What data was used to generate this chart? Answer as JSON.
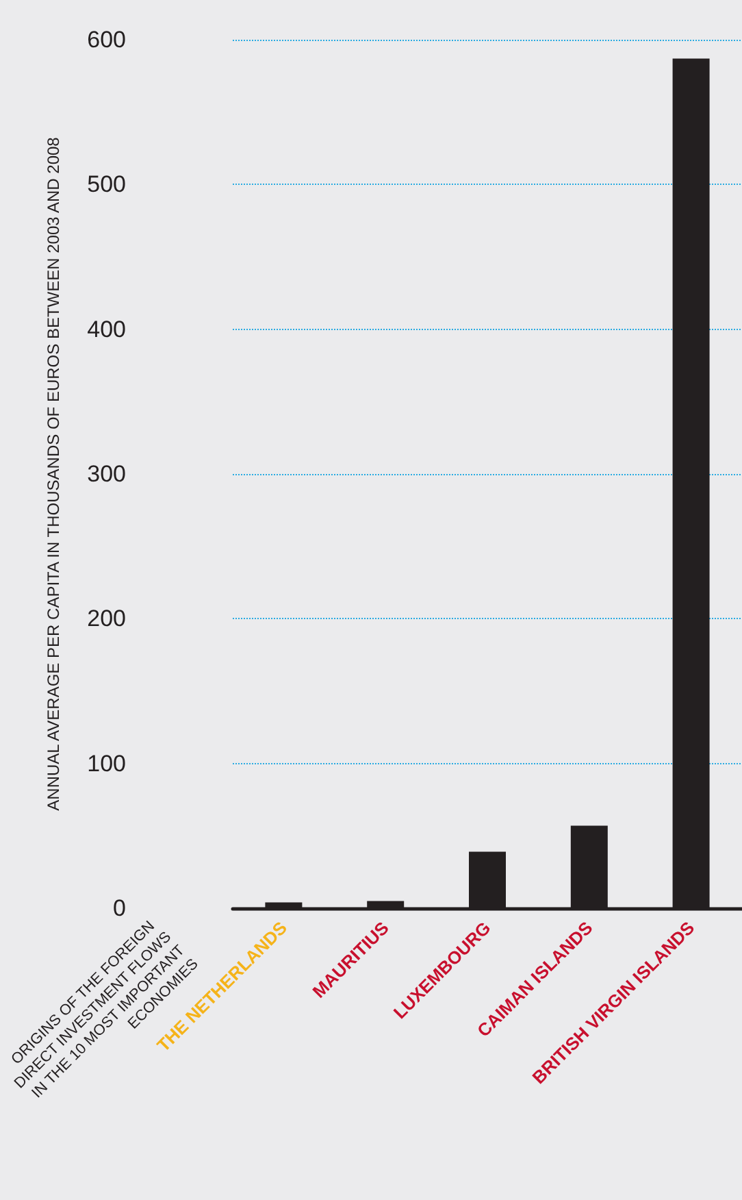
{
  "chart_data": {
    "type": "bar",
    "xlabel": "ORIGINS OF THE FOREIGN DIRECT INVESTMENT FLOWS IN THE 10 MOST IMPORTANT ECONOMIES",
    "ylabel": "ANNUAL AVERAGE PER CAPITA IN THOUSANDS OF EUROS BETWEEN 2003 AND 2008",
    "categories": [
      "THE NETHERLANDS",
      "MAURITIUS",
      "LUXEMBOURG",
      "CAIMAN ISLANDS",
      "BRITISH VIRGIN ISLANDS"
    ],
    "values": [
      4,
      5,
      39,
      57,
      587
    ],
    "color": "#231f20",
    "ylim": [
      0,
      600
    ],
    "yticks": [
      0,
      100,
      200,
      300,
      400,
      500,
      600
    ],
    "grid": "y"
  }
}
